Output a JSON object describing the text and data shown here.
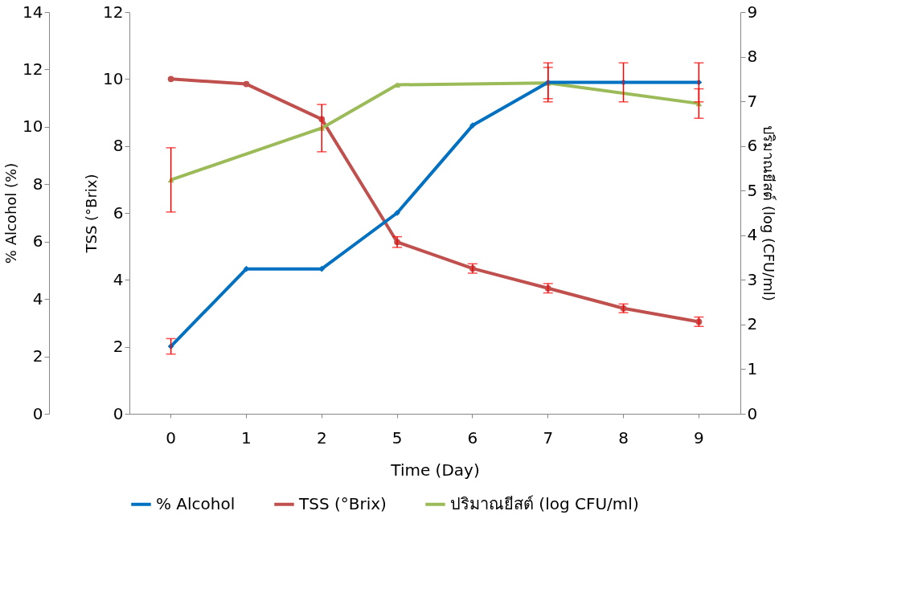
{
  "chart_data": {
    "type": "line",
    "xlabel": "Time (Day)",
    "ylabel": "% Alcohol (%)",
    "y2label": "TSS (°Brix)",
    "y3label": "ปริมาณยีสต์ (log (CFU/ml)",
    "categories": [
      "0",
      "1",
      "2",
      "5",
      "6",
      "7",
      "8",
      "9"
    ],
    "ylim": [
      0,
      14
    ],
    "yticks": [
      0,
      2,
      4,
      6,
      8,
      10,
      12,
      14
    ],
    "y2lim": [
      0,
      12
    ],
    "y2ticks": [
      0,
      2,
      4,
      6,
      8,
      10,
      12
    ],
    "y3lim": [
      0,
      9
    ],
    "y3ticks": [
      0,
      1,
      2,
      3,
      4,
      5,
      6,
      7,
      8,
      9
    ],
    "legend": "bottom",
    "grid": false,
    "series": [
      {
        "name": "% Alcohol",
        "color": "#0070c0",
        "marker": "diamond",
        "values": [
          2.35,
          5.05,
          5.05,
          7.0,
          10.05,
          11.55,
          11.55,
          11.55
        ],
        "errors": [
          0.27,
          null,
          null,
          null,
          null,
          0.68,
          0.68,
          0.68
        ]
      },
      {
        "name": "TSS (°Brix)",
        "color": "#c0504d",
        "marker": "circle",
        "axis": "y2",
        "values": [
          10.0,
          9.85,
          8.8,
          5.13,
          4.34,
          3.75,
          3.15,
          2.75
        ],
        "errors": [
          null,
          null,
          null,
          0.16,
          0.14,
          0.14,
          0.13,
          0.14
        ]
      },
      {
        "name": "ปริมาณยีสต์ (log CFU/ml)",
        "color": "#9bbb59",
        "marker": "triangle",
        "axis": "y3",
        "values": [
          5.24,
          null,
          6.4,
          7.37,
          null,
          7.41,
          null,
          6.95
        ],
        "errors": [
          0.72,
          null,
          0.53,
          null,
          null,
          0.35,
          null,
          0.33
        ]
      }
    ]
  }
}
